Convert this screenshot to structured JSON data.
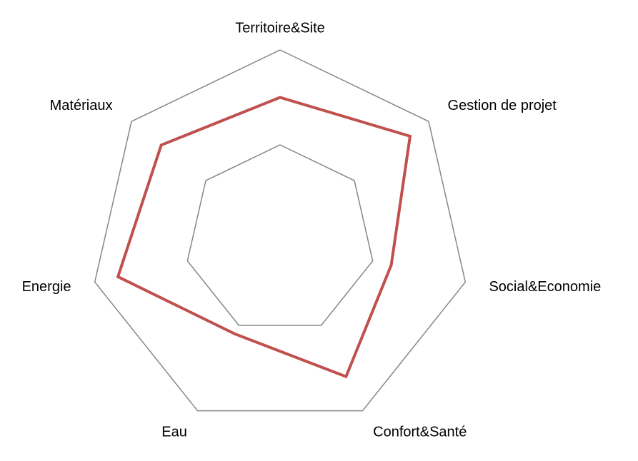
{
  "chart_data": {
    "type": "radar",
    "categories": [
      "Territoire&Site",
      "Gestion de projet",
      "Social&Economie",
      "Confort&Santé",
      "Eau",
      "Energie",
      "Matériaux"
    ],
    "series": [
      {
        "color": "#c0504d",
        "values": [
          1.5,
          1.75,
          1.2,
          1.6,
          1.1,
          1.75,
          1.6
        ]
      }
    ],
    "ylim": [
      0,
      2
    ],
    "yticks": [
      0,
      1,
      2
    ],
    "grid": true
  }
}
